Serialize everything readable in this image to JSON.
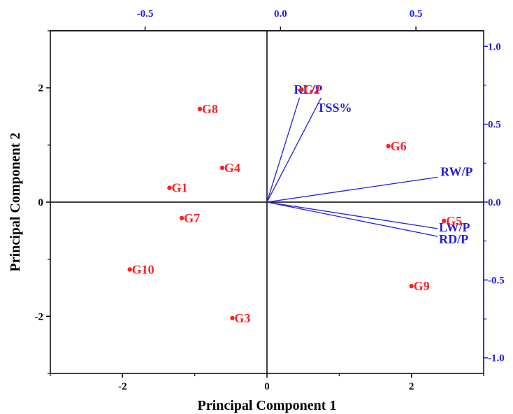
{
  "chart_data": {
    "type": "scatter",
    "subtype": "pca-biplot",
    "xlabel": "Principal Component 1",
    "ylabel": "Principal Component 2",
    "xlim": [
      -3,
      3
    ],
    "ylim": [
      -3,
      3
    ],
    "xticks": [
      "-2",
      "0",
      "2"
    ],
    "yticks": [
      "-2",
      "0",
      "2"
    ],
    "top_axis": {
      "lim": [
        -0.85,
        0.75
      ],
      "ticks": [
        "-0.5",
        "0.0",
        "0.5"
      ]
    },
    "right_axis": {
      "lim": [
        -1.1,
        1.1
      ],
      "ticks": [
        "1.0",
        "0.5",
        "0.0",
        "-0.5",
        "-1.0"
      ]
    },
    "grid": false,
    "zero_lines": true,
    "colors": {
      "points": "#ff2020",
      "loadings": "#1f1fe0",
      "axes": "#000000",
      "secondary_axes": "#1f1fe0"
    },
    "points": [
      {
        "label": "G1",
        "x": -1.35,
        "y": 0.25
      },
      {
        "label": "G2",
        "x": 0.48,
        "y": 1.97
      },
      {
        "label": "G3",
        "x": -0.48,
        "y": -2.03
      },
      {
        "label": "G4",
        "x": -0.62,
        "y": 0.6
      },
      {
        "label": "G5",
        "x": 2.45,
        "y": -0.33
      },
      {
        "label": "G6",
        "x": 1.68,
        "y": 0.98
      },
      {
        "label": "G7",
        "x": -1.18,
        "y": -0.28
      },
      {
        "label": "G8",
        "x": -0.93,
        "y": 1.63
      },
      {
        "label": "G9",
        "x": 2.0,
        "y": -1.47
      },
      {
        "label": "G10",
        "x": -1.9,
        "y": -1.18
      }
    ],
    "loadings": [
      {
        "label": "RL/P",
        "x": 0.07,
        "y": 0.67
      },
      {
        "label": "TSS%",
        "x": 0.15,
        "y": 0.67
      },
      {
        "label": "RW/P",
        "x": 0.58,
        "y": 0.16
      },
      {
        "label": "LW/P",
        "x": 0.58,
        "y": -0.17
      },
      {
        "label": "RD/P",
        "x": 0.58,
        "y": -0.22
      }
    ]
  }
}
